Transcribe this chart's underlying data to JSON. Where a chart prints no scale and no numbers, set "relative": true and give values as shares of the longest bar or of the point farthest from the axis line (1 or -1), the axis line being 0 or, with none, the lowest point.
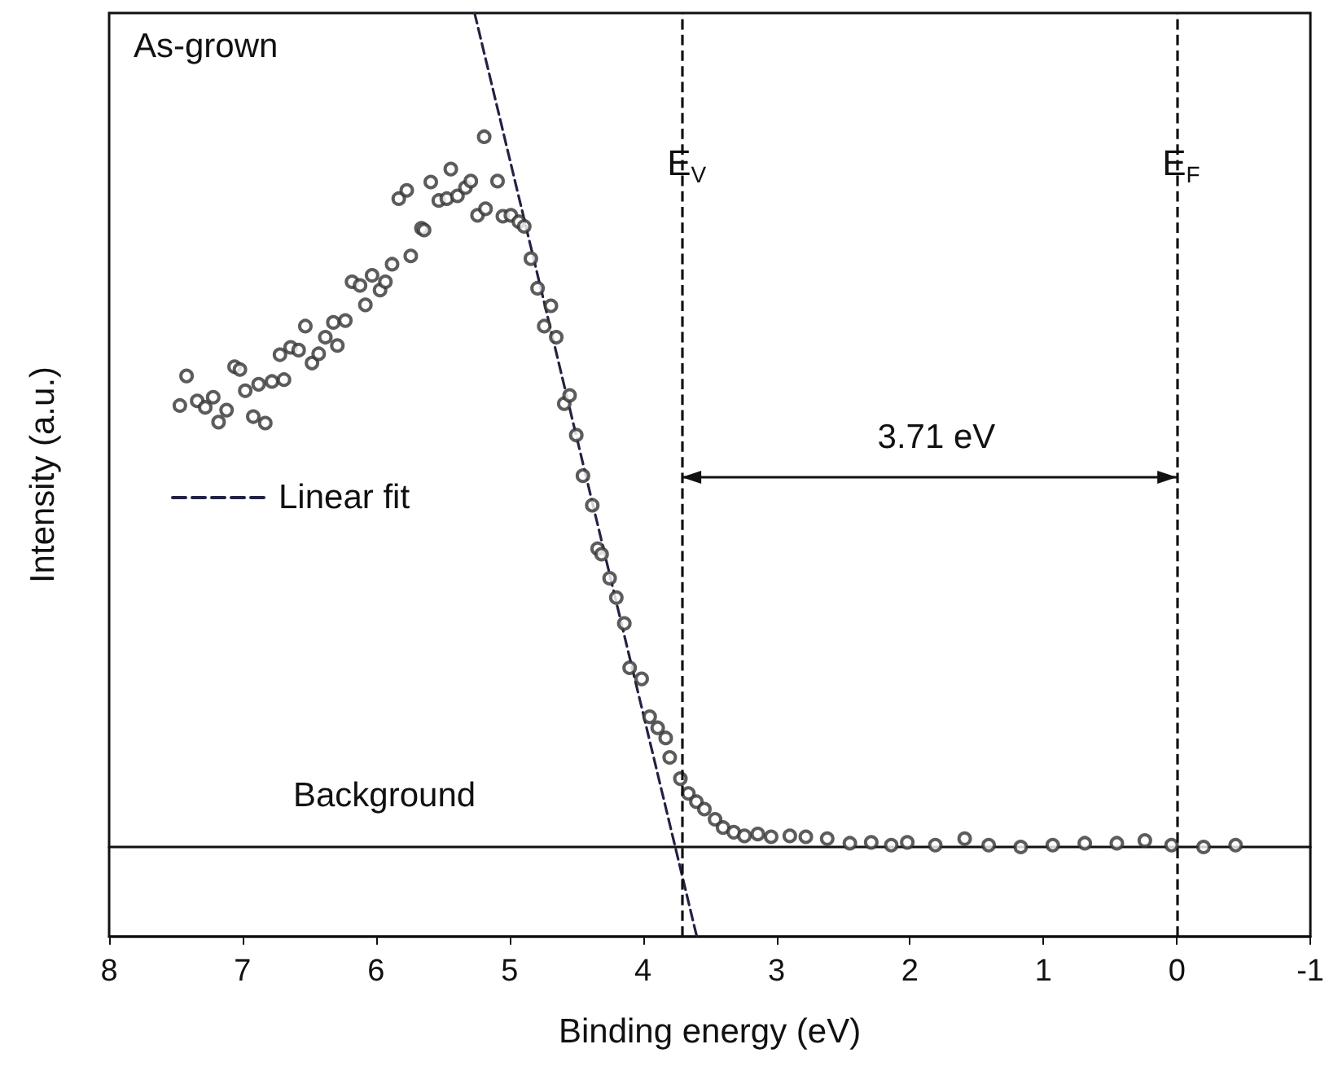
{
  "chart_data": {
    "type": "scatter",
    "xlabel": "Binding energy (eV)",
    "ylabel": "Intensity (a.u.)",
    "relative": true,
    "xlim": [
      8,
      -1
    ],
    "xticks": [
      8,
      7,
      6,
      5,
      4,
      3,
      2,
      1,
      0,
      -1
    ],
    "grid": false,
    "legend": "left",
    "marker": "circle",
    "annotations": [
      "As-grown",
      "Background",
      "3.71 eV"
    ],
    "ref_lines": [
      {
        "axis": "x",
        "value": 3.71,
        "label": "E$_{V}$",
        "color": "#111111",
        "line_style": "dashed"
      },
      {
        "axis": "x",
        "value": 0,
        "label": "E$_{F}$",
        "color": "#111111",
        "line_style": "dashed"
      }
    ],
    "series": [
      {
        "color": "#333333",
        "x": [
          7.47,
          7.42,
          7.34,
          7.28,
          7.22,
          7.18,
          7.12,
          7.06,
          7.02,
          6.98,
          6.92,
          6.88,
          6.83,
          6.78,
          6.72,
          6.69,
          6.64,
          6.58,
          6.53,
          6.48,
          6.43,
          6.38,
          6.32,
          6.29,
          6.23,
          6.18,
          6.12,
          6.08,
          6.03,
          5.97,
          5.93,
          5.88,
          5.83,
          5.77,
          5.74,
          5.66,
          5.64,
          5.59,
          5.53,
          5.47,
          5.44,
          5.39,
          5.33,
          5.29,
          5.24,
          5.19,
          5.18,
          5.09,
          5.05,
          4.99,
          4.93,
          4.89,
          4.84,
          4.79,
          4.74,
          4.69,
          4.65,
          4.59,
          4.55,
          4.5,
          4.45,
          4.38,
          4.34,
          4.31,
          4.25,
          4.2,
          4.14,
          4.1,
          4.01,
          3.95,
          3.89,
          3.83,
          3.8,
          3.72,
          3.66,
          3.6,
          3.54,
          3.46,
          3.4,
          3.32,
          3.24,
          3.14,
          3.04,
          2.9,
          2.78,
          2.62,
          2.45,
          2.29,
          2.14,
          2.02,
          1.81,
          1.59,
          1.41,
          1.17,
          0.93,
          0.69,
          0.45,
          0.24,
          0.04,
          -0.2,
          -0.44
        ],
        "values": [
          0.575,
          0.607,
          0.58,
          0.573,
          0.584,
          0.557,
          0.57,
          0.617,
          0.614,
          0.591,
          0.563,
          0.598,
          0.556,
          0.601,
          0.63,
          0.603,
          0.638,
          0.635,
          0.661,
          0.621,
          0.631,
          0.649,
          0.665,
          0.64,
          0.667,
          0.709,
          0.705,
          0.684,
          0.716,
          0.7,
          0.709,
          0.728,
          0.799,
          0.808,
          0.737,
          0.767,
          0.765,
          0.817,
          0.797,
          0.799,
          0.831,
          0.802,
          0.811,
          0.818,
          0.781,
          0.866,
          0.788,
          0.818,
          0.78,
          0.781,
          0.774,
          0.769,
          0.734,
          0.702,
          0.661,
          0.683,
          0.649,
          0.577,
          0.586,
          0.543,
          0.499,
          0.467,
          0.42,
          0.414,
          0.388,
          0.367,
          0.339,
          0.291,
          0.279,
          0.238,
          0.226,
          0.215,
          0.194,
          0.171,
          0.155,
          0.146,
          0.138,
          0.127,
          0.118,
          0.113,
          0.109,
          0.111,
          0.108,
          0.109,
          0.108,
          0.106,
          0.101,
          0.102,
          0.099,
          0.102,
          0.099,
          0.106,
          0.099,
          0.097,
          0.099,
          0.101,
          0.101,
          0.104,
          0.099,
          0.097,
          0.099
        ]
      },
      {
        "type": "line",
        "name": "Linear fit",
        "color": "#222244",
        "line_style": "dashed",
        "marker": "none",
        "x": [
          5.262,
          3.597
        ],
        "values": [
          1,
          0
        ]
      },
      {
        "type": "line",
        "color": "#111111",
        "line_style": "solid",
        "marker": "none",
        "x": [
          8,
          -1
        ],
        "values": [
          0.097,
          0.097
        ]
      }
    ]
  }
}
